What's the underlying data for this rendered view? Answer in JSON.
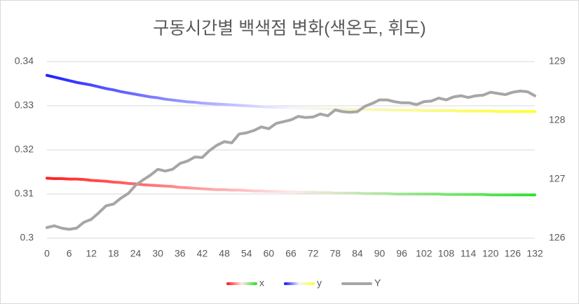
{
  "chart_data": {
    "type": "line",
    "title": "구동시간별 백색점 변화(색온도, 휘도)",
    "x": [
      0,
      2,
      4,
      6,
      8,
      10,
      12,
      14,
      16,
      18,
      20,
      22,
      24,
      26,
      28,
      30,
      32,
      34,
      36,
      38,
      40,
      42,
      44,
      46,
      48,
      50,
      52,
      54,
      56,
      58,
      60,
      62,
      64,
      66,
      68,
      70,
      72,
      74,
      76,
      78,
      80,
      82,
      84,
      86,
      88,
      90,
      92,
      94,
      96,
      98,
      100,
      102,
      104,
      106,
      108,
      110,
      112,
      114,
      116,
      118,
      120,
      122,
      124,
      126,
      128,
      130,
      132
    ],
    "xlim": [
      0,
      132
    ],
    "xticks": [
      0,
      6,
      12,
      18,
      24,
      30,
      36,
      42,
      48,
      54,
      60,
      66,
      72,
      78,
      84,
      90,
      96,
      102,
      108,
      114,
      120,
      126,
      132
    ],
    "ylim": [
      0.3,
      0.34
    ],
    "yticks": [
      0.3,
      0.31,
      0.32,
      0.33,
      0.34
    ],
    "y2lim": [
      126,
      129
    ],
    "y2ticks": [
      126,
      127,
      128,
      129
    ],
    "grid": true,
    "legend": "bottom",
    "series": [
      {
        "name": "x",
        "color": [
          "#ff2020",
          "#ffe8e8",
          "#30e030"
        ],
        "values": [
          0.3136,
          0.3135,
          0.3135,
          0.3134,
          0.3134,
          0.3133,
          0.3131,
          0.313,
          0.3129,
          0.3127,
          0.3126,
          0.3124,
          0.3123,
          0.3121,
          0.312,
          0.3119,
          0.3118,
          0.3117,
          0.3115,
          0.3114,
          0.3113,
          0.3112,
          0.3111,
          0.311,
          0.311,
          0.3109,
          0.3109,
          0.3108,
          0.3107,
          0.3107,
          0.3106,
          0.3106,
          0.3105,
          0.3105,
          0.3104,
          0.3104,
          0.3104,
          0.3103,
          0.3103,
          0.3102,
          0.3102,
          0.3102,
          0.3102,
          0.3101,
          0.3101,
          0.3101,
          0.3101,
          0.31,
          0.31,
          0.31,
          0.31,
          0.31,
          0.31,
          0.31,
          0.3099,
          0.3099,
          0.3099,
          0.3099,
          0.3099,
          0.3099,
          0.3098,
          0.3098,
          0.3098,
          0.3098,
          0.3098,
          0.3098,
          0.3098
        ]
      },
      {
        "name": "y",
        "color": [
          "#2020ff",
          "#f4f4ff",
          "#ffff30"
        ],
        "values": [
          0.3369,
          0.3365,
          0.3361,
          0.3357,
          0.3353,
          0.335,
          0.3347,
          0.3343,
          0.3339,
          0.3336,
          0.3332,
          0.3329,
          0.3326,
          0.3323,
          0.332,
          0.3318,
          0.3315,
          0.3313,
          0.3311,
          0.3309,
          0.3308,
          0.3306,
          0.3305,
          0.3304,
          0.3303,
          0.3302,
          0.3301,
          0.33,
          0.3299,
          0.3298,
          0.3297,
          0.3297,
          0.3296,
          0.3296,
          0.3295,
          0.3295,
          0.3294,
          0.3294,
          0.3293,
          0.3293,
          0.3293,
          0.3292,
          0.3292,
          0.3292,
          0.3291,
          0.3291,
          0.3291,
          0.329,
          0.329,
          0.329,
          0.329,
          0.3289,
          0.3289,
          0.3289,
          0.3289,
          0.3289,
          0.3288,
          0.3288,
          0.3288,
          0.3288,
          0.3288,
          0.3287,
          0.3287,
          0.3287,
          0.3287,
          0.3287,
          0.3287
        ]
      },
      {
        "name": "Y",
        "color": "#a6a6a6",
        "axis": "y2",
        "values": [
          126.18,
          126.21,
          126.17,
          126.15,
          126.17,
          126.27,
          126.32,
          126.43,
          126.55,
          126.58,
          126.68,
          126.76,
          126.9,
          126.99,
          127.07,
          127.17,
          127.14,
          127.17,
          127.27,
          127.31,
          127.38,
          127.37,
          127.49,
          127.58,
          127.64,
          127.62,
          127.77,
          127.79,
          127.83,
          127.89,
          127.86,
          127.95,
          127.98,
          128.01,
          128.07,
          128.05,
          128.06,
          128.11,
          128.08,
          128.18,
          128.15,
          128.14,
          128.15,
          128.24,
          128.29,
          128.35,
          128.35,
          128.32,
          128.3,
          128.3,
          128.27,
          128.32,
          128.33,
          128.38,
          128.35,
          128.4,
          128.42,
          128.39,
          128.42,
          128.43,
          128.48,
          128.46,
          128.44,
          128.48,
          128.5,
          128.49,
          128.42
        ]
      }
    ]
  }
}
